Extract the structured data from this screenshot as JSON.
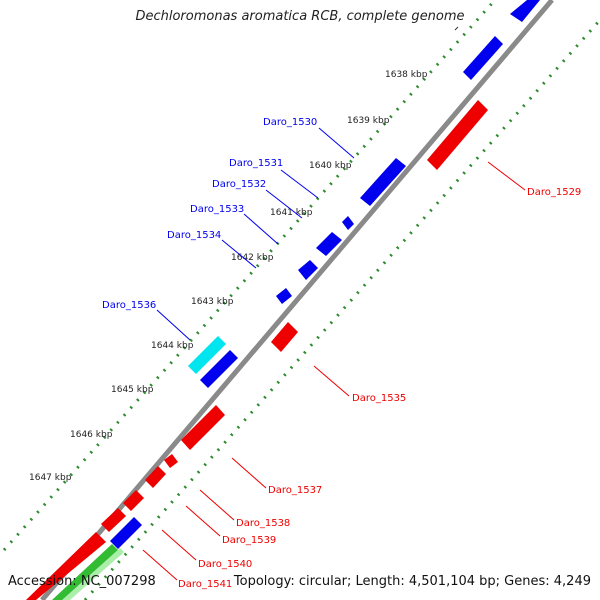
{
  "title": "Dechloromonas aromatica RCB, complete genome",
  "accession": "Accession: NC_007298",
  "topology": "Topology: circular; Length: 4,501,104 bp; Genes: 4,249",
  "colors": {
    "backbone": "#8a8a8a",
    "gc_dots": "#2e8b2e",
    "forward_gene": "#0000ee",
    "reverse_gene": "#ee0000",
    "highlight_gene": "#00e5ee",
    "other_feature": "#33bb33"
  },
  "ticks": [
    {
      "label": "1638 kbp",
      "position_kbp": 1638
    },
    {
      "label": "1639 kbp",
      "position_kbp": 1639
    },
    {
      "label": "1640 kbp",
      "position_kbp": 1640
    },
    {
      "label": "1641 kbp",
      "position_kbp": 1641
    },
    {
      "label": "1642 kbp",
      "position_kbp": 1642
    },
    {
      "label": "1643 kbp",
      "position_kbp": 1643
    },
    {
      "label": "1644 kbp",
      "position_kbp": 1644
    },
    {
      "label": "1645 kbp",
      "position_kbp": 1645
    },
    {
      "label": "1646 kbp",
      "position_kbp": 1646
    },
    {
      "label": "1647 kbp",
      "position_kbp": 1647
    }
  ],
  "genes": [
    {
      "label": "Daro_1529",
      "strand": "reverse",
      "color": "#ee0000"
    },
    {
      "label": "Daro_1530",
      "strand": "forward",
      "color": "#0000ee"
    },
    {
      "label": "Daro_1531",
      "strand": "forward",
      "color": "#0000ee"
    },
    {
      "label": "Daro_1532",
      "strand": "forward",
      "color": "#0000ee"
    },
    {
      "label": "Daro_1533",
      "strand": "forward",
      "color": "#0000ee"
    },
    {
      "label": "Daro_1534",
      "strand": "forward",
      "color": "#0000ee"
    },
    {
      "label": "Daro_1535",
      "strand": "reverse",
      "color": "#ee0000"
    },
    {
      "label": "Daro_1536",
      "strand": "forward",
      "color": "#0000ee"
    },
    {
      "label": "Daro_1537",
      "strand": "reverse",
      "color": "#ee0000"
    },
    {
      "label": "Daro_1538",
      "strand": "reverse",
      "color": "#ee0000"
    },
    {
      "label": "Daro_1539",
      "strand": "reverse",
      "color": "#ee0000"
    },
    {
      "label": "Daro_1540",
      "strand": "reverse",
      "color": "#ee0000"
    },
    {
      "label": "Daro_1541",
      "strand": "reverse",
      "color": "#ee0000"
    }
  ]
}
